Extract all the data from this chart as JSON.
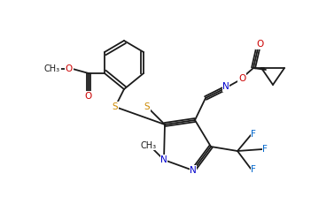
{
  "bg_color": "#ffffff",
  "line_color": "#1a1a1a",
  "atom_colors": {
    "N": "#0000cc",
    "S": "#cc8800",
    "O": "#cc0000",
    "F": "#0066cc",
    "C": "#1a1a1a"
  },
  "font_size": 7.5,
  "lw": 1.3
}
